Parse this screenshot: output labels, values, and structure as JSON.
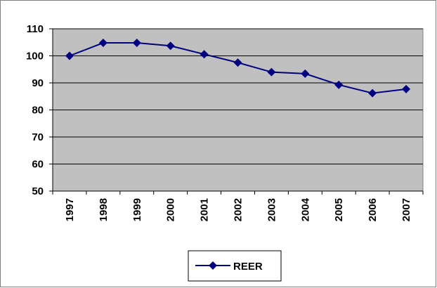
{
  "chart_data": {
    "type": "line",
    "categories": [
      "1997",
      "1998",
      "1999",
      "2000",
      "2001",
      "2002",
      "2003",
      "2004",
      "2005",
      "2006",
      "2007"
    ],
    "series": [
      {
        "name": "REER",
        "color": "#000080",
        "values": [
          100,
          104.8,
          104.8,
          103.7,
          100.6,
          97.5,
          94,
          93.4,
          89.3,
          86.2,
          87.7
        ]
      }
    ],
    "ylim": [
      50,
      110
    ],
    "yticks": [
      50,
      60,
      70,
      80,
      90,
      100,
      110
    ],
    "grid": true,
    "plot_background": "#c0c0c0",
    "legend": "bottom"
  }
}
